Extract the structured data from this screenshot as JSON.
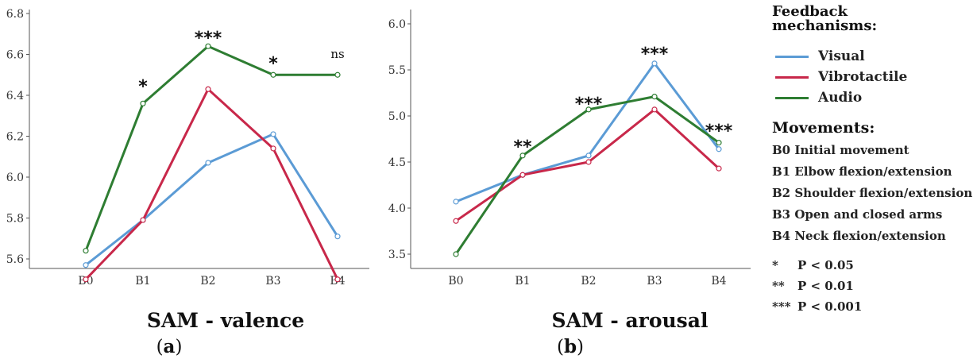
{
  "chart_data": [
    {
      "type": "line",
      "title": "SAM - valence",
      "panel_label": "a",
      "categories": [
        "B0",
        "B1",
        "B2",
        "B3",
        "B4"
      ],
      "ylim": [
        5.45,
        6.82
      ],
      "yticks": [
        5.6,
        5.8,
        6.0,
        6.2,
        6.4,
        6.6,
        6.8
      ],
      "series": [
        {
          "name": "Visual",
          "color": "#5b9bd5",
          "values": [
            5.57,
            5.79,
            6.07,
            6.21,
            5.71
          ]
        },
        {
          "name": "Vibrotactile",
          "color": "#c8284a",
          "values": [
            5.5,
            5.79,
            6.43,
            6.14,
            5.5
          ]
        },
        {
          "name": "Audio",
          "color": "#2e7d32",
          "values": [
            5.64,
            6.36,
            6.64,
            6.5,
            6.5
          ]
        }
      ],
      "significance": [
        {
          "category": "B1",
          "label": "*"
        },
        {
          "category": "B2",
          "label": "***"
        },
        {
          "category": "B3",
          "label": "*"
        },
        {
          "category": "B4",
          "label": "ns"
        }
      ]
    },
    {
      "type": "line",
      "title": "SAM - arousal",
      "panel_label": "b",
      "categories": [
        "B0",
        "B1",
        "B2",
        "B3",
        "B4"
      ],
      "ylim": [
        3.4,
        6.1
      ],
      "yticks": [
        3.5,
        4.0,
        4.5,
        5.0,
        5.5,
        6.0
      ],
      "series": [
        {
          "name": "Visual",
          "color": "#5b9bd5",
          "values": [
            4.07,
            4.36,
            4.57,
            5.57,
            4.64
          ]
        },
        {
          "name": "Vibrotactile",
          "color": "#c8284a",
          "values": [
            3.86,
            4.36,
            4.5,
            5.07,
            4.43
          ]
        },
        {
          "name": "Audio",
          "color": "#2e7d32",
          "values": [
            3.5,
            4.57,
            5.07,
            5.21,
            4.71
          ]
        }
      ],
      "significance": [
        {
          "category": "B1",
          "label": "**"
        },
        {
          "category": "B2",
          "label": "***"
        },
        {
          "category": "B3",
          "label": "***"
        },
        {
          "category": "B4",
          "label": "***"
        }
      ]
    }
  ],
  "legend": {
    "feedback_title": "Feedback mechanisms:",
    "feedback": [
      {
        "label": "Visual",
        "color": "#5b9bd5"
      },
      {
        "label": "Vibrotactile",
        "color": "#c8284a"
      },
      {
        "label": "Audio",
        "color": "#2e7d32"
      }
    ],
    "movements_title": "Movements:",
    "movements": [
      "B0 Initial movement",
      "B1 Elbow flexion/extension",
      "B2 Shoulder flexion/extension",
      "B3 Open and closed arms",
      "B4 Neck flexion/extension"
    ],
    "pvalues": [
      {
        "stars": "*",
        "text": "P < 0.05"
      },
      {
        "stars": "**",
        "text": "P < 0.01"
      },
      {
        "stars": "***",
        "text": "P < 0.001"
      }
    ]
  }
}
